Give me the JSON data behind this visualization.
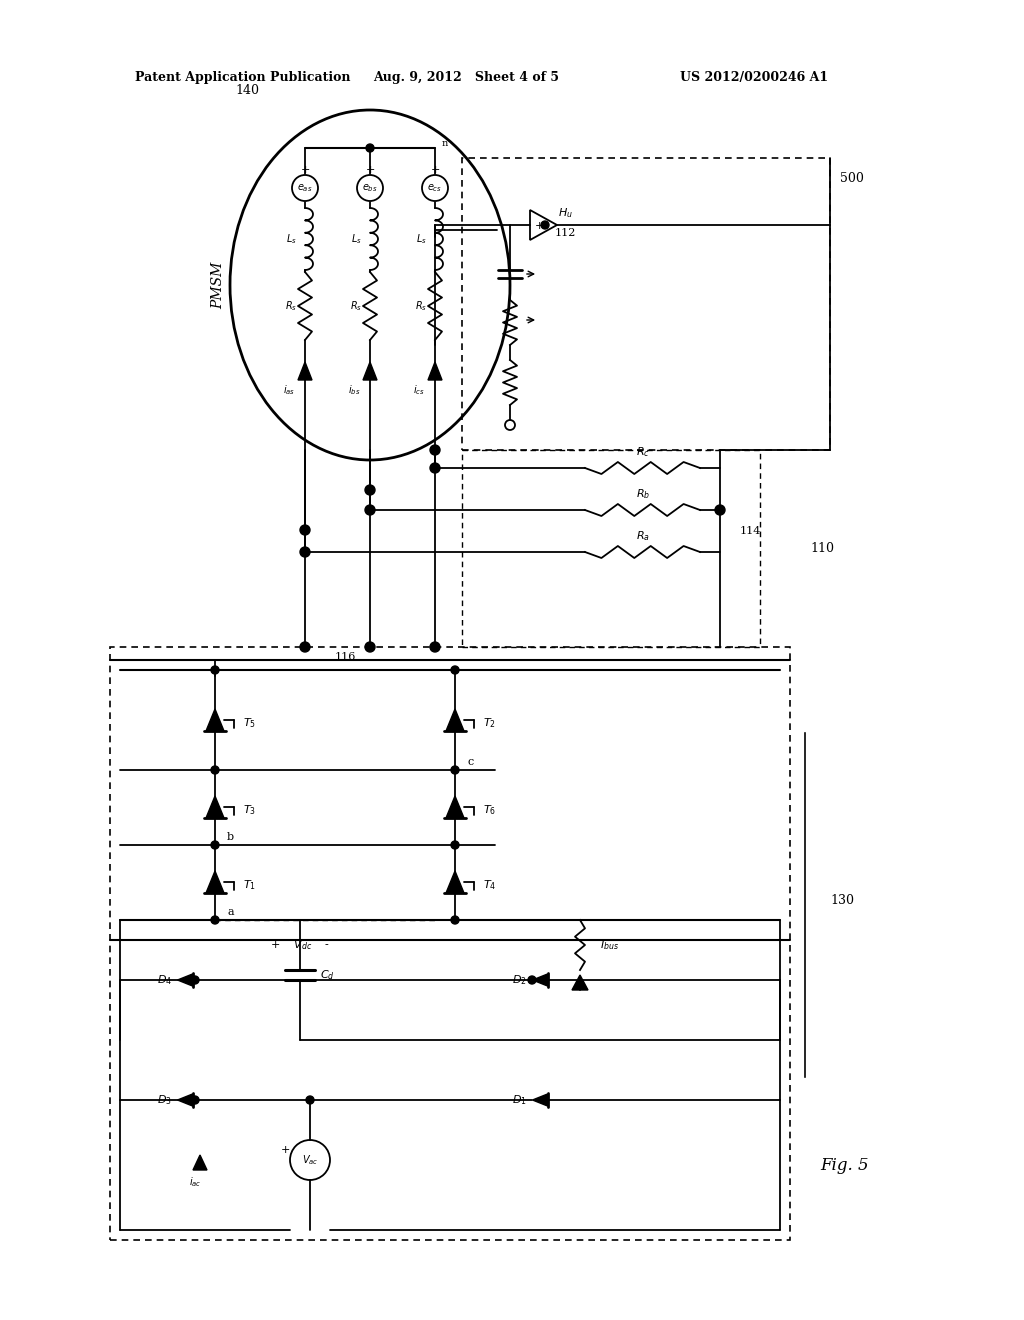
{
  "bg_color": "#ffffff",
  "line_color": "#000000",
  "header_left": "Patent Application Publication",
  "header_center": "Aug. 9, 2012   Sheet 4 of 5",
  "header_right": "US 2012/0200246 A1",
  "fig_label": "Fig. 5",
  "label_140": "140",
  "label_500": "500",
  "label_110": "110",
  "label_130": "130",
  "label_114": "114",
  "label_116": "116",
  "label_112": "112"
}
